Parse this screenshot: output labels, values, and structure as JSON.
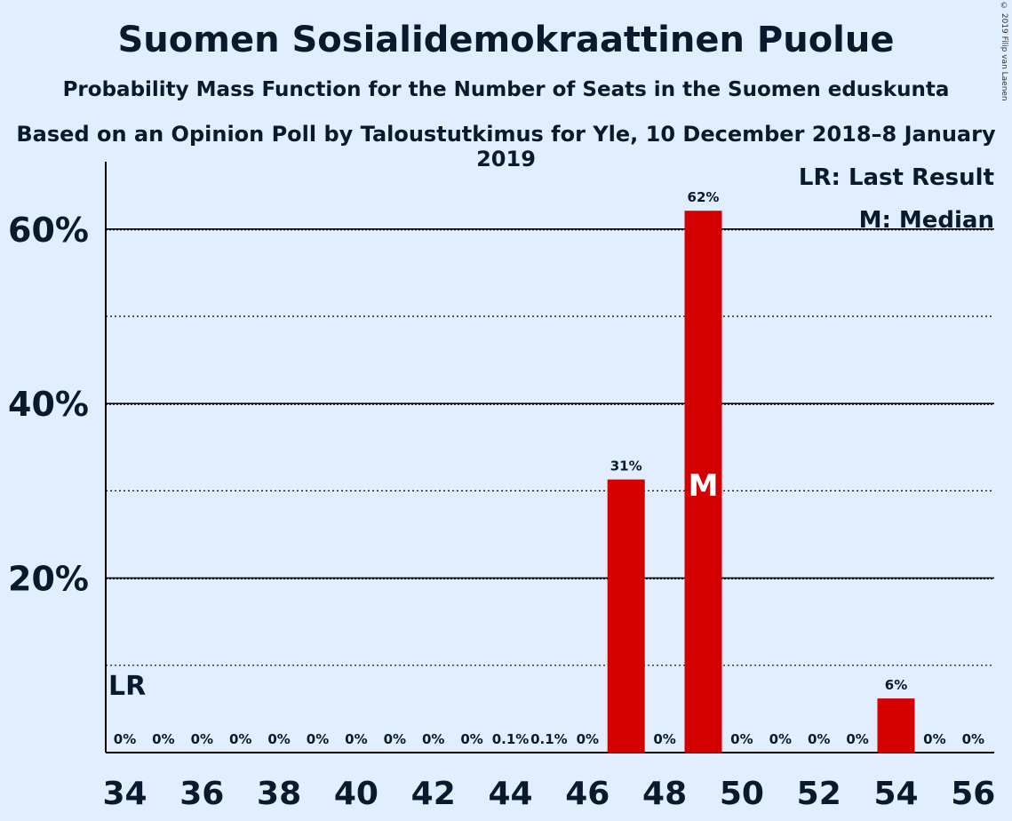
{
  "title": "Suomen Sosialidemokraattinen Puolue",
  "subtitle": "Probability Mass Function for the Number of Seats in the Suomen eduskunta",
  "subtitle2": "Based on an Opinion Poll by Taloustutkimus for Yle, 10 December 2018–8 January 2019",
  "copyright": "© 2019 Filip van Laenen",
  "legend": {
    "last_result": "LR: Last Result",
    "median": "M: Median"
  },
  "colors": {
    "bar": "#d40000",
    "background": "#e0eeff",
    "text": "#0a1a2e"
  },
  "chart_data": {
    "type": "bar",
    "x": [
      34,
      35,
      36,
      37,
      38,
      39,
      40,
      41,
      42,
      43,
      44,
      45,
      46,
      47,
      48,
      49,
      50,
      51,
      52,
      53,
      54,
      55,
      56
    ],
    "values": [
      0,
      0,
      0,
      0,
      0,
      0,
      0,
      0,
      0,
      0,
      0.1,
      0.1,
      0,
      31.3,
      0,
      62.1,
      0,
      0,
      0,
      0,
      6.2,
      0,
      0
    ],
    "value_labels": [
      "0%",
      "0%",
      "0%",
      "0%",
      "0%",
      "0%",
      "0%",
      "0%",
      "0%",
      "0%",
      "0.1%",
      "0.1%",
      "0%",
      "31%",
      "0%",
      "62%",
      "0%",
      "0%",
      "0%",
      "0%",
      "6%",
      "0%",
      "0%"
    ],
    "xticks": [
      "34",
      "36",
      "38",
      "40",
      "42",
      "44",
      "46",
      "48",
      "50",
      "52",
      "54",
      "56"
    ],
    "yticks": [
      "20%",
      "40%",
      "60%"
    ],
    "ytick_values": [
      20,
      40,
      60
    ],
    "ylim": [
      0,
      67
    ],
    "grid_solid": [
      20,
      40,
      60
    ],
    "grid_dotted": [
      10,
      30,
      50
    ],
    "last_result_seat": 34,
    "last_result_label": "LR",
    "median_seat": 49,
    "median_label": "M"
  }
}
